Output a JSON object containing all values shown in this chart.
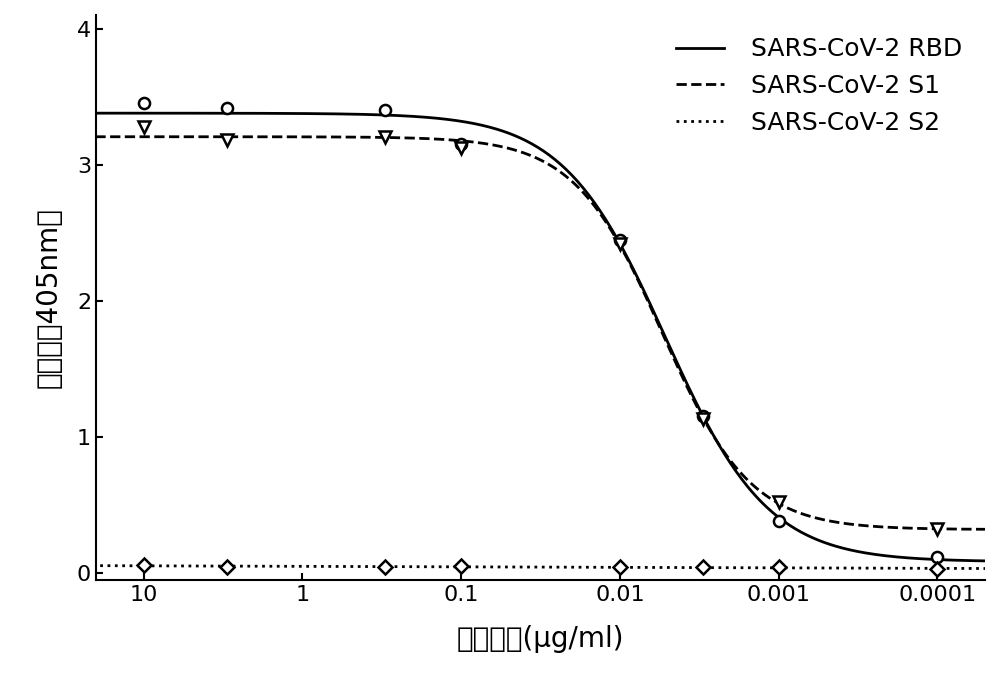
{
  "title": "",
  "xlabel": "抗体浓度(μg/ml)",
  "ylabel": "吸光度（405nm）",
  "xlim_log": [
    -4,
    1.3
  ],
  "ylim": [
    -0.05,
    4.1
  ],
  "yticks": [
    0,
    1,
    2,
    3,
    4
  ],
  "xtick_labels": [
    "10",
    "1",
    "0.1",
    "0.01",
    "0.001",
    "0.0001"
  ],
  "xtick_values": [
    10,
    1,
    0.1,
    0.01,
    0.001,
    0.0001
  ],
  "series": [
    {
      "label": "SARS-CoV-2 RBD",
      "linestyle": "solid",
      "marker": "o",
      "marker_size": 8,
      "color": "#000000",
      "x": [
        10,
        3,
        0.3,
        0.1,
        0.01,
        0.003,
        0.001,
        0.0001
      ],
      "y": [
        3.45,
        3.42,
        3.4,
        3.15,
        2.45,
        1.15,
        0.38,
        0.12
      ]
    },
    {
      "label": "SARS-CoV-2 S1",
      "linestyle": "dashed",
      "marker": "v",
      "marker_size": 8,
      "color": "#000000",
      "x": [
        10,
        3,
        0.3,
        0.1,
        0.01,
        0.003,
        0.001,
        0.0001
      ],
      "y": [
        3.28,
        3.18,
        3.2,
        3.12,
        2.42,
        1.13,
        0.52,
        0.32
      ]
    },
    {
      "label": "SARS-CoV-2 S2",
      "linestyle": "dotted",
      "marker": "D",
      "marker_size": 7,
      "color": "#000000",
      "x": [
        10,
        3,
        0.3,
        0.1,
        0.01,
        0.003,
        0.001,
        0.0001
      ],
      "y": [
        0.06,
        0.04,
        0.04,
        0.05,
        0.04,
        0.04,
        0.04,
        0.03
      ]
    }
  ],
  "legend_loc": "upper right",
  "background_color": "#ffffff",
  "line_width": 2.0,
  "font_size_label": 20,
  "font_size_tick": 16,
  "font_size_legend": 18
}
